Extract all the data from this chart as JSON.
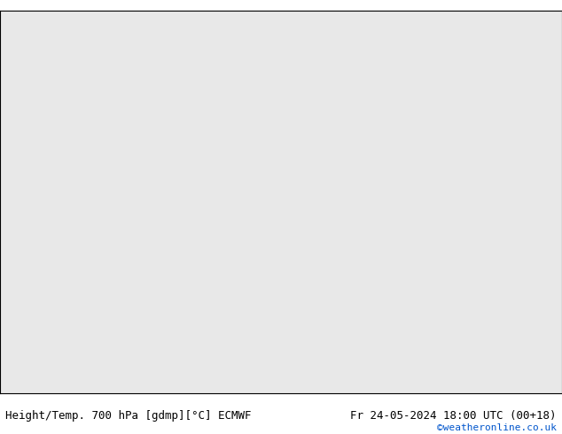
{
  "title_left": "Height/Temp. 700 hPa [gdmp][°C] ECMWF",
  "title_right": "Fr 24-05-2024 18:00 UTC (00+18)",
  "credit": "©weatheronline.co.uk",
  "background_ocean": "#e8e8e8",
  "background_land": "#c8e8a0",
  "land_border": "#aaaaaa",
  "black_contour_color": "#000000",
  "magenta_contour_color": "#ff00aa",
  "red_contour_color": "#cc0000",
  "fig_width": 6.34,
  "fig_height": 4.9,
  "dpi": 100,
  "lon_min": -12,
  "lon_max": 10,
  "lat_min": 47,
  "lat_max": 62,
  "title_fontsize": 9,
  "credit_fontsize": 8,
  "credit_color": "#0055cc"
}
